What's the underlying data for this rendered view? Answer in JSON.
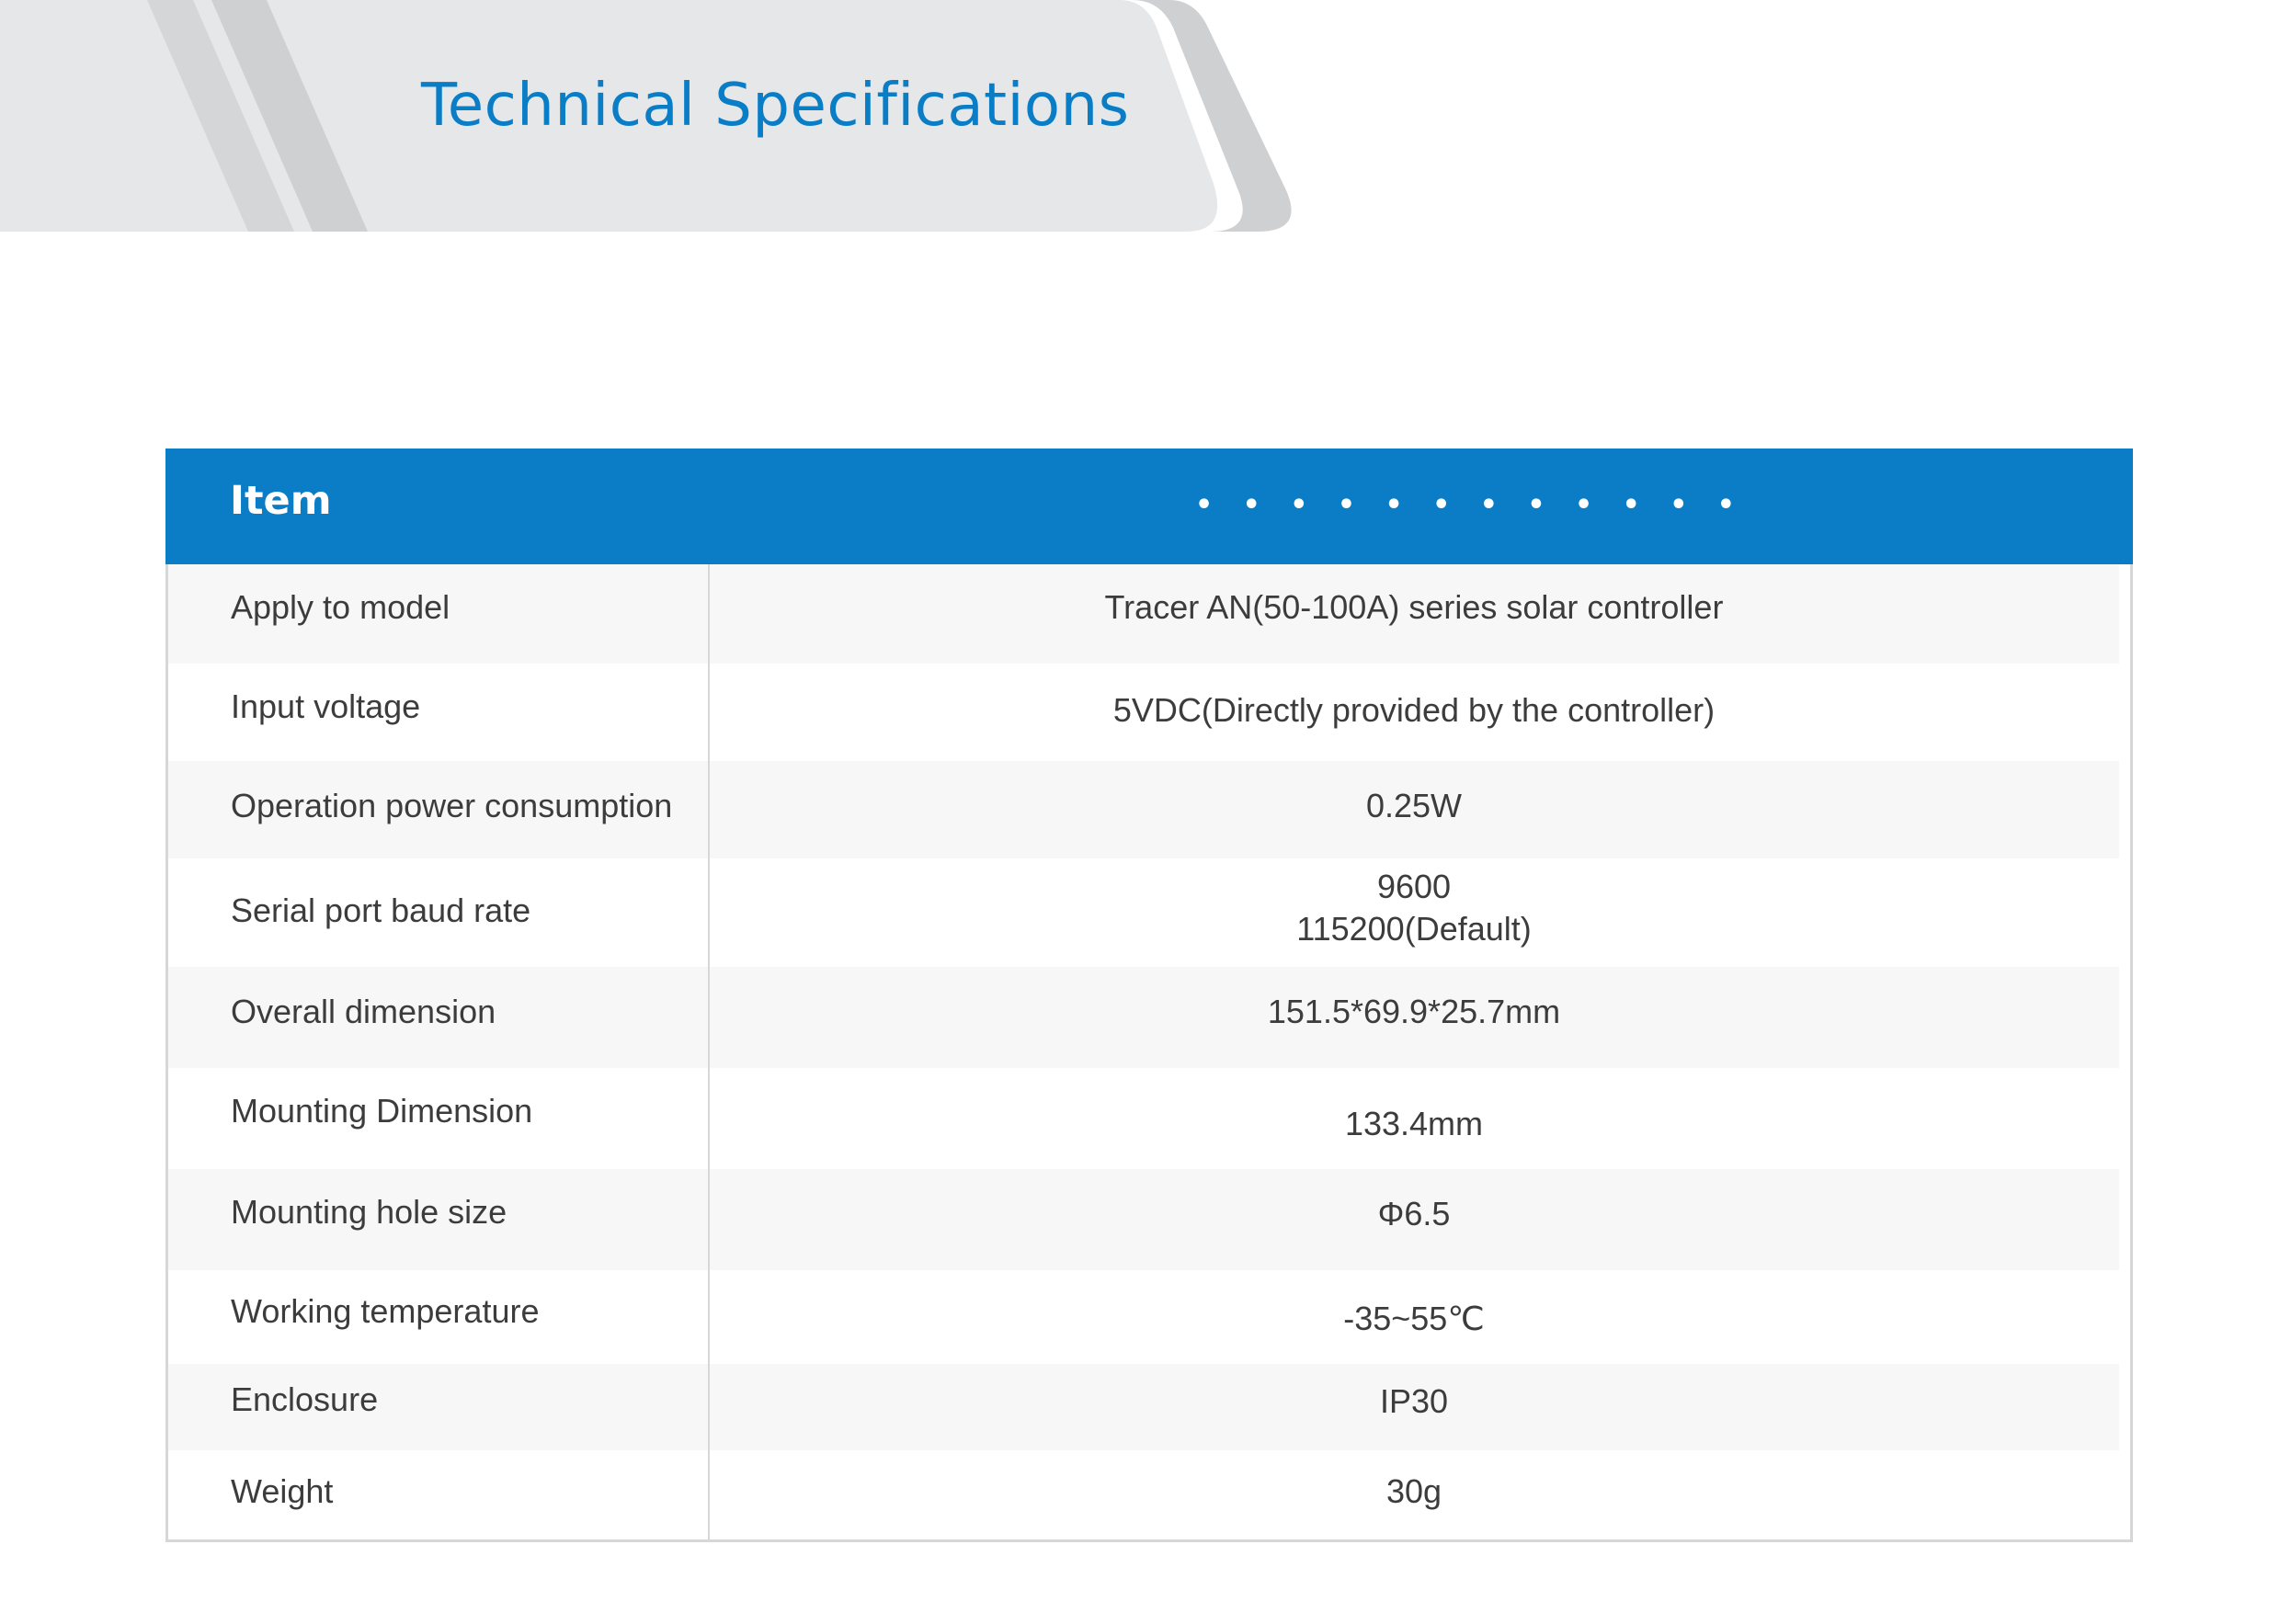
{
  "header": {
    "title": "Technical Specifications"
  },
  "table": {
    "columns": {
      "item_label": "Item",
      "value_label": "• • • • • • • • • • • •"
    },
    "rows": [
      {
        "label": "Apply to model",
        "value": "Tracer AN(50-100A) series solar controller"
      },
      {
        "label": "Input voltage",
        "value": "5VDC(Directly provided by the controller)"
      },
      {
        "label": "Operation power consumption",
        "value": "0.25W"
      },
      {
        "label": "Serial port baud rate",
        "value": "9600",
        "value2": "115200(Default)"
      },
      {
        "label": "Overall dimension",
        "value": "151.5*69.9*25.7mm"
      },
      {
        "label": "Mounting Dimension",
        "value": "133.4mm"
      },
      {
        "label": "Mounting hole size",
        "value": "Φ6.5"
      },
      {
        "label": "Working temperature",
        "value": "-35~55℃"
      },
      {
        "label": "Enclosure",
        "value": "IP30"
      },
      {
        "label": "Weight",
        "value": "30g"
      }
    ]
  },
  "colors": {
    "accent": "#0a7dc6",
    "banner_light": "#e6e7e9",
    "banner_dark": "#cfd0d2",
    "row_shade": "#f7f7f8",
    "text": "#3c3c3c"
  }
}
